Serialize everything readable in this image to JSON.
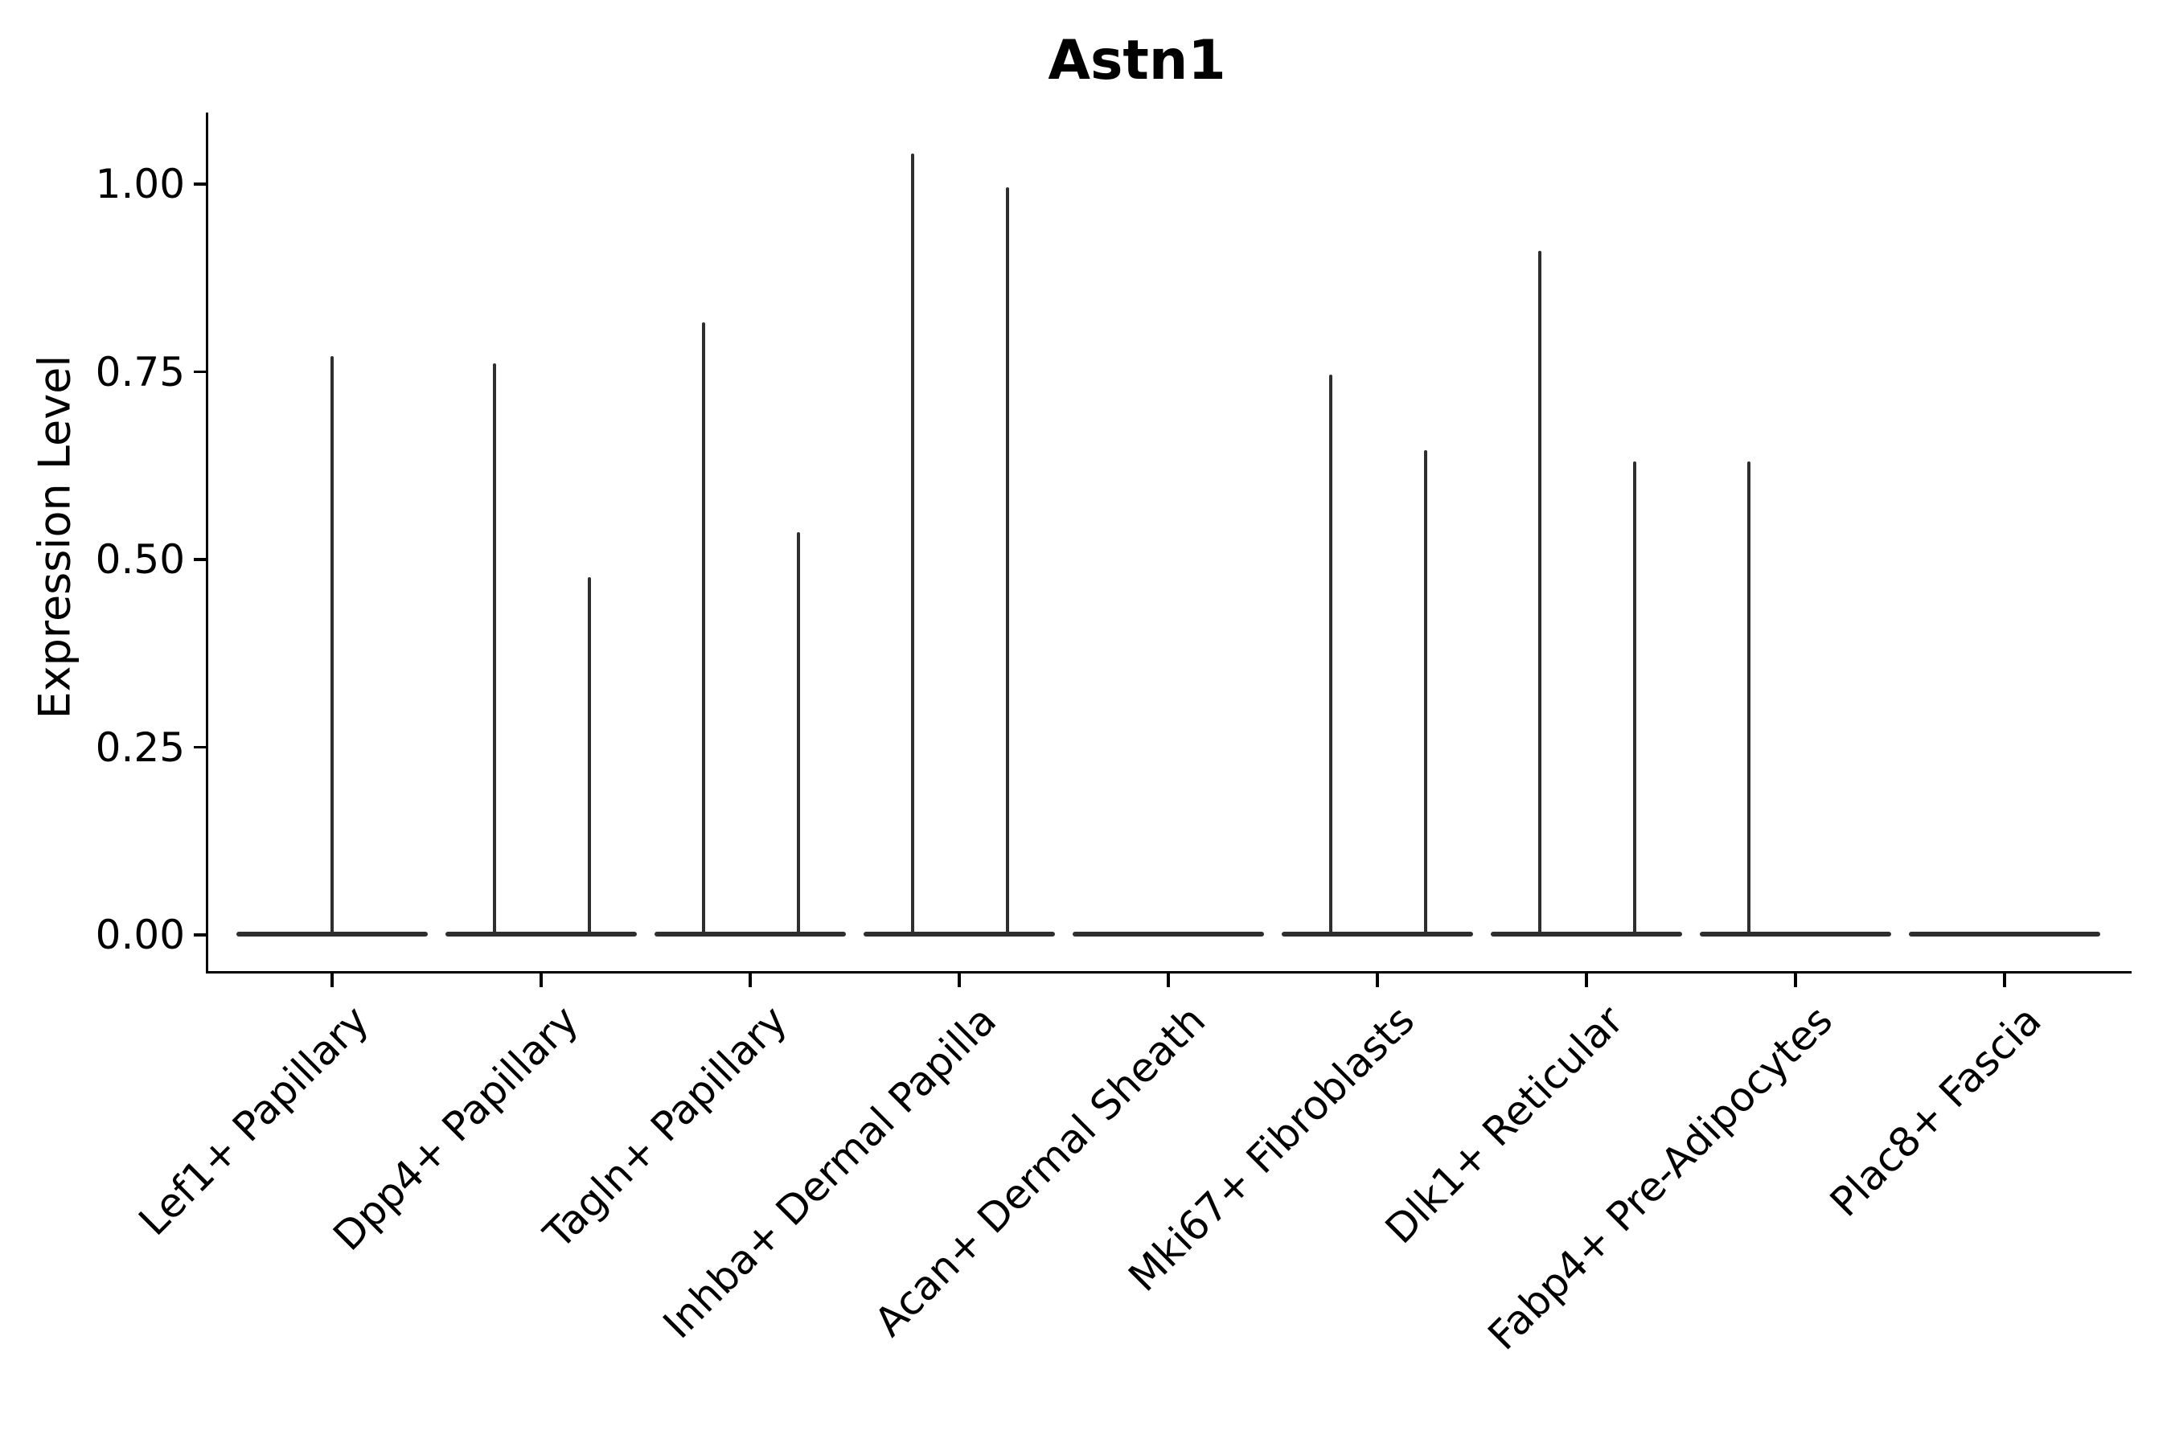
{
  "title": "Astn1",
  "y_axis": {
    "label": "Expression Level",
    "ticks": [
      {
        "label": "1.00",
        "value": 1.0
      },
      {
        "label": "0.75",
        "value": 0.75
      },
      {
        "label": "0.50",
        "value": 0.5
      },
      {
        "label": "0.25",
        "value": 0.25
      },
      {
        "label": "0.00",
        "value": 0.0
      }
    ]
  },
  "colors": {
    "violin": "#2e2e2e",
    "axis": "#000000",
    "text": "#000000",
    "background": "#ffffff"
  },
  "chart_data": {
    "type": "violin",
    "title": "Astn1",
    "xlabel": "",
    "ylabel": "Expression Level",
    "ylim": [
      -0.05,
      1.1
    ],
    "grid": false,
    "legend": false,
    "categories": [
      "Lef1+ Papillary",
      "Dpp4+ Papillary",
      "Tagln+ Papillary",
      "Inhba+ Dermal Papilla",
      "Acan+ Dermal Sheath",
      "Mki67+ Fibroblasts",
      "Dlk1+ Reticular",
      "Fabp4+ Pre-Adipocytes",
      "Plac8+ Fascia"
    ],
    "description": "Violin plot of Astn1 expression per cluster; each violin is flattened at 0 with thin density spikes reaching the maximum expression values.",
    "series": [
      {
        "category": "Lef1+ Papillary",
        "baseline": 0,
        "spikes": [
          {
            "pos": "center",
            "max": 0.77
          }
        ]
      },
      {
        "category": "Dpp4+ Papillary",
        "baseline": 0,
        "spikes": [
          {
            "pos": "left",
            "max": 0.76
          },
          {
            "pos": "right",
            "max": 0.475
          }
        ]
      },
      {
        "category": "Tagln+ Papillary",
        "baseline": 0,
        "spikes": [
          {
            "pos": "left",
            "max": 0.815
          },
          {
            "pos": "right",
            "max": 0.535
          }
        ]
      },
      {
        "category": "Inhba+ Dermal Papilla",
        "baseline": 0,
        "spikes": [
          {
            "pos": "left",
            "max": 1.04
          },
          {
            "pos": "right",
            "max": 0.995
          }
        ]
      },
      {
        "category": "Acan+ Dermal Sheath",
        "baseline": 0,
        "spikes": []
      },
      {
        "category": "Mki67+ Fibroblasts",
        "baseline": 0,
        "spikes": [
          {
            "pos": "left",
            "max": 0.745
          },
          {
            "pos": "right",
            "max": 0.645
          }
        ]
      },
      {
        "category": "Dlk1+ Reticular",
        "baseline": 0,
        "spikes": [
          {
            "pos": "left",
            "max": 0.91
          },
          {
            "pos": "right",
            "max": 0.63
          }
        ]
      },
      {
        "category": "Fabp4+ Pre-Adipocytes",
        "baseline": 0,
        "spikes": [
          {
            "pos": "left",
            "max": 0.63
          }
        ]
      },
      {
        "category": "Plac8+ Fascia",
        "baseline": 0,
        "spikes": []
      }
    ]
  }
}
